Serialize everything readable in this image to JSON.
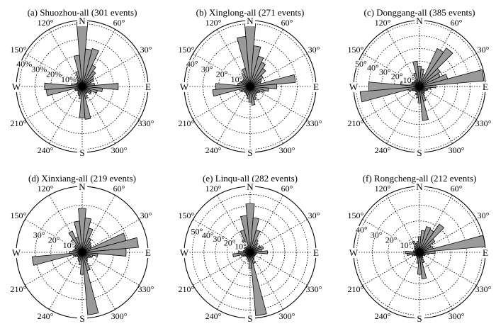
{
  "chart_data": [
    {
      "type": "rose",
      "title": "(a) Shuozhou-all (301 events)",
      "sector_width_deg": 10,
      "rmax": 42,
      "ring_values": [
        10,
        20,
        30,
        40
      ],
      "ring_labels": [
        "10%",
        "20%",
        "30%",
        "40%"
      ],
      "cardinal_labels": [
        "N",
        "E",
        "S",
        "W"
      ],
      "angle_labels": [
        "30°",
        "60°",
        "120°",
        "150°",
        "210°",
        "240°",
        "300°",
        "330°"
      ],
      "azimuth": [
        0,
        10,
        20,
        30,
        40,
        50,
        60,
        70,
        80,
        90,
        100,
        110,
        120,
        130,
        140,
        150,
        160,
        170,
        180,
        190,
        200,
        210,
        220,
        230,
        240,
        250,
        260,
        270,
        280,
        290,
        300,
        310,
        320,
        330,
        340,
        350
      ],
      "values": [
        41,
        24,
        25,
        15,
        12,
        9,
        8,
        6,
        8,
        23,
        13,
        10,
        6,
        7,
        5,
        5,
        8,
        21,
        20,
        8,
        6,
        5,
        4,
        4,
        5,
        5,
        23,
        24,
        7,
        5,
        4,
        4,
        5,
        7,
        10,
        20
      ]
    },
    {
      "type": "rose",
      "title": "(b) Xinglong-all (271 events)",
      "sector_width_deg": 10,
      "rmax": 42,
      "ring_values": [
        10,
        20,
        30,
        40
      ],
      "ring_labels": [
        "10°",
        "20°",
        "30°",
        "40°"
      ],
      "cardinal_labels": [
        "N",
        "E",
        "S",
        "W"
      ],
      "angle_labels": [
        "30°",
        "60°",
        "120°",
        "150°",
        "210°",
        "240°",
        "300°",
        "330°"
      ],
      "azimuth": [
        0,
        10,
        20,
        30,
        40,
        50,
        60,
        70,
        80,
        90,
        100,
        110,
        120,
        130,
        140,
        150,
        160,
        170,
        180,
        190,
        200,
        210,
        220,
        230,
        240,
        250,
        260,
        270,
        280,
        290,
        300,
        310,
        320,
        330,
        340,
        350
      ],
      "values": [
        40,
        26,
        20,
        17,
        14,
        10,
        8,
        7,
        29,
        17,
        12,
        9,
        7,
        6,
        6,
        7,
        9,
        12,
        10,
        8,
        6,
        5,
        5,
        5,
        6,
        7,
        24,
        22,
        8,
        7,
        6,
        6,
        7,
        9,
        12,
        32
      ]
    },
    {
      "type": "rose",
      "title": "(c) Donggang-all (385 events)",
      "sector_width_deg": 10,
      "rmax": 52,
      "ring_values": [
        10,
        20,
        30,
        40,
        50
      ],
      "ring_labels": [
        "10°",
        "20°",
        "30°",
        "40°",
        "50°"
      ],
      "cardinal_labels": [
        "N",
        "E",
        "S",
        "W"
      ],
      "angle_labels": [
        "30°",
        "60°",
        "120°",
        "150°",
        "210°",
        "240°",
        "300°",
        "330°"
      ],
      "azimuth": [
        0,
        10,
        20,
        30,
        40,
        50,
        60,
        70,
        80,
        90,
        100,
        110,
        120,
        130,
        140,
        150,
        160,
        170,
        180,
        190,
        200,
        210,
        220,
        230,
        240,
        250,
        260,
        270,
        280,
        290,
        300,
        310,
        320,
        330,
        340,
        350
      ],
      "values": [
        16,
        14,
        10,
        33,
        37,
        20,
        18,
        23,
        51,
        13,
        9,
        7,
        6,
        5,
        6,
        7,
        12,
        27,
        13,
        9,
        7,
        5,
        5,
        5,
        6,
        9,
        47,
        40,
        15,
        9,
        6,
        5,
        6,
        9,
        11,
        20
      ]
    },
    {
      "type": "rose",
      "title": "(d) Xinxiang-all (219 events)",
      "sector_width_deg": 10,
      "rmax": 42,
      "ring_values": [
        10,
        20,
        30
      ],
      "ring_labels": [
        "10°",
        "20°",
        "30°"
      ],
      "cardinal_labels": [
        "N",
        "E",
        "S",
        "W"
      ],
      "angle_labels": [
        "30°",
        "60°",
        "120°",
        "150°",
        "210°",
        "240°",
        "300°",
        "330°"
      ],
      "azimuth": [
        0,
        10,
        20,
        30,
        40,
        50,
        60,
        70,
        80,
        90,
        100,
        110,
        120,
        130,
        140,
        150,
        160,
        170,
        180,
        190,
        200,
        210,
        220,
        230,
        240,
        250,
        260,
        270,
        280,
        290,
        300,
        310,
        320,
        330,
        340,
        350
      ],
      "values": [
        28,
        22,
        16,
        10,
        8,
        7,
        6,
        29,
        36,
        28,
        10,
        7,
        6,
        5,
        5,
        6,
        12,
        40,
        14,
        8,
        6,
        5,
        4,
        4,
        5,
        6,
        32,
        8,
        6,
        5,
        5,
        6,
        10,
        15,
        10,
        20
      ]
    },
    {
      "type": "rose",
      "title": "(e) Linqu-all (282 events)",
      "sector_width_deg": 10,
      "rmax": 57,
      "ring_values": [
        10,
        20,
        30,
        40,
        50
      ],
      "ring_labels": [
        "10°",
        "20°",
        "30°",
        "40°",
        "50°"
      ],
      "cardinal_labels": [
        "N",
        "E",
        "S",
        "W"
      ],
      "angle_labels": [
        "30°",
        "60°",
        "120°",
        "150°",
        "210°",
        "240°",
        "300°",
        "330°"
      ],
      "azimuth": [
        0,
        10,
        20,
        30,
        40,
        50,
        60,
        70,
        80,
        90,
        100,
        110,
        120,
        130,
        140,
        150,
        160,
        170,
        180,
        190,
        200,
        210,
        220,
        230,
        240,
        250,
        260,
        270,
        280,
        290,
        300,
        310,
        320,
        330,
        340,
        350
      ],
      "values": [
        42,
        30,
        20,
        12,
        9,
        7,
        10,
        12,
        10,
        15,
        6,
        5,
        5,
        5,
        5,
        6,
        10,
        55,
        14,
        8,
        6,
        5,
        5,
        5,
        6,
        8,
        15,
        10,
        6,
        5,
        5,
        6,
        8,
        12,
        20,
        32
      ]
    },
    {
      "type": "rose",
      "title": "(f) Rongcheng-all (212 events)",
      "sector_width_deg": 10,
      "rmax": 42,
      "ring_values": [
        10,
        20,
        30,
        40
      ],
      "ring_labels": [
        "10°",
        "20°",
        "30°",
        "40°"
      ],
      "cardinal_labels": [
        "N",
        "E",
        "S",
        "W"
      ],
      "angle_labels": [
        "30°",
        "60°",
        "120°",
        "150°",
        "210°",
        "240°",
        "300°",
        "330°"
      ],
      "azimuth": [
        0,
        10,
        20,
        30,
        40,
        50,
        60,
        70,
        80,
        90,
        100,
        110,
        120,
        130,
        140,
        150,
        160,
        170,
        180,
        190,
        200,
        210,
        220,
        230,
        240,
        250,
        260,
        270,
        280,
        290,
        300,
        310,
        320,
        330,
        340,
        350
      ],
      "values": [
        10,
        14,
        17,
        16,
        22,
        12,
        8,
        9,
        43,
        10,
        6,
        4,
        4,
        3,
        3,
        4,
        7,
        17,
        14,
        7,
        4,
        3,
        3,
        3,
        4,
        5,
        8,
        9,
        4,
        3,
        3,
        4,
        5,
        8,
        6,
        7
      ]
    }
  ]
}
